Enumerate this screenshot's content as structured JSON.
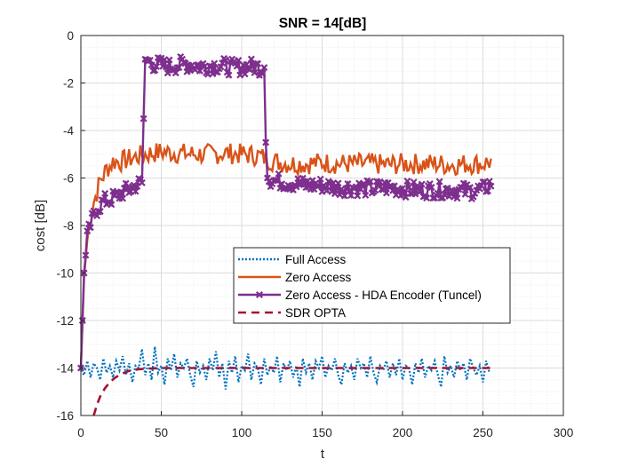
{
  "chart_data": {
    "type": "line",
    "title": "SNR = 14[dB]",
    "xlabel": "t",
    "ylabel": "cost [dB]",
    "xlim": [
      0,
      300
    ],
    "ylim": [
      -16,
      0
    ],
    "xticks": [
      0,
      50,
      100,
      150,
      200,
      250,
      300
    ],
    "yticks": [
      0,
      -2,
      -4,
      -6,
      -8,
      -10,
      -12,
      -14,
      -16
    ],
    "grid": "major and minor",
    "legend_position": "center-right",
    "series": [
      {
        "name": "Full Access",
        "style": "dotted",
        "color": "#0072BD",
        "x_range": [
          0,
          255
        ],
        "level": -14.0,
        "spread": [
          -15.2,
          -12.9
        ],
        "values": [
          -14.1,
          -14.3,
          -13.7,
          -14.4,
          -13.8,
          -14.0,
          -14.5,
          -13.6,
          -14.2,
          -13.9,
          -14.4,
          -13.7,
          -14.1,
          -13.5,
          -14.3,
          -13.8,
          -14.6,
          -13.9,
          -14.0,
          -13.2,
          -14.3,
          -13.8,
          -14.5,
          -13.1,
          -14.2,
          -13.9,
          -14.7,
          -13.6,
          -14.1,
          -13.4,
          -14.4,
          -13.8,
          -14.0,
          -13.6,
          -14.3,
          -14.8,
          -13.7,
          -14.2,
          -13.9,
          -14.5,
          -13.6,
          -14.1,
          -13.3,
          -14.4,
          -13.8,
          -14.9,
          -13.7,
          -14.2,
          -13.5,
          -14.6,
          -13.9,
          -14.1,
          -13.4,
          -14.5,
          -13.8,
          -14.0,
          -14.7,
          -13.6,
          -14.3,
          -13.9,
          -14.2,
          -13.5,
          -14.6,
          -13.8,
          -14.1,
          -13.7,
          -14.4,
          -13.9,
          -14.8,
          -13.6,
          -14.2,
          -13.8,
          -14.5,
          -13.7,
          -14.0,
          -13.5,
          -14.4,
          -13.9,
          -14.1,
          -13.6,
          -14.3,
          -14.7,
          -13.8,
          -14.2,
          -13.9,
          -14.5,
          -13.6,
          -14.0,
          -13.8,
          -14.4,
          -13.5,
          -14.2,
          -14.6,
          -13.9,
          -14.1,
          -13.7,
          -14.4,
          -13.8,
          -14.3,
          -13.6,
          -14.5,
          -13.9,
          -14.0,
          -14.7,
          -13.8,
          -14.2,
          -13.6,
          -14.4,
          -13.9,
          -14.1,
          -13.7,
          -14.3,
          -14.8,
          -13.5,
          -14.2,
          -13.9,
          -14.4,
          -13.7,
          -14.1,
          -13.8,
          -14.5,
          -13.6,
          -14.0,
          -14.3,
          -13.9,
          -14.6,
          -13.7,
          -14.2
        ],
        "x_step": 2
      },
      {
        "name": "Zero Access",
        "style": "solid",
        "color": "#D95319",
        "x": [
          0,
          2,
          4,
          6,
          8,
          10,
          12,
          14,
          16,
          18,
          20,
          25,
          30,
          35,
          40,
          50,
          60,
          70,
          80,
          90,
          100,
          110,
          120,
          130,
          140,
          150,
          160,
          170,
          180,
          190,
          200,
          210,
          220,
          230,
          240,
          250,
          255
        ],
        "values": [
          -14.0,
          -10.2,
          -8.6,
          -7.7,
          -7.0,
          -6.6,
          -6.1,
          -5.9,
          -5.6,
          -5.5,
          -5.3,
          -5.3,
          -5.2,
          -5.1,
          -5.0,
          -4.9,
          -4.95,
          -5.0,
          -5.0,
          -4.95,
          -5.0,
          -5.05,
          -5.3,
          -5.4,
          -5.4,
          -5.35,
          -5.4,
          -5.4,
          -5.4,
          -5.45,
          -5.4,
          -5.4,
          -5.4,
          -5.45,
          -5.4,
          -5.4,
          -5.3
        ],
        "noise": 0.45
      },
      {
        "name": "Zero Access - HDA Encoder (Tuncel)",
        "style": "solid-x-markers",
        "color": "#7E2F8E",
        "x": [
          0,
          2,
          4,
          6,
          8,
          10,
          14,
          18,
          22,
          26,
          30,
          34,
          38,
          39,
          40,
          45,
          55,
          65,
          75,
          85,
          95,
          105,
          114,
          115,
          116,
          120,
          130,
          140,
          150,
          160,
          170,
          180,
          190,
          200,
          210,
          220,
          230,
          240,
          250,
          255
        ],
        "values": [
          -14.0,
          -10.0,
          -8.5,
          -8.0,
          -7.6,
          -7.3,
          -7.0,
          -6.9,
          -6.8,
          -6.6,
          -6.5,
          -6.3,
          -6.2,
          -3.5,
          -1.0,
          -1.2,
          -1.3,
          -1.2,
          -1.3,
          -1.25,
          -1.35,
          -1.3,
          -1.35,
          -4.5,
          -6.0,
          -6.1,
          -6.2,
          -6.3,
          -6.3,
          -6.4,
          -6.4,
          -6.45,
          -6.4,
          -6.45,
          -6.5,
          -6.5,
          -6.5,
          -6.55,
          -6.5,
          -6.2
        ],
        "noise": 0.35
      },
      {
        "name": "SDR OPTA",
        "style": "dashed",
        "color": "#A2142F",
        "x": [
          8,
          10,
          12,
          15,
          18,
          21,
          25,
          30,
          35,
          40,
          50,
          60,
          80,
          100,
          150,
          200,
          255
        ],
        "values": [
          -16.0,
          -15.55,
          -15.2,
          -14.85,
          -14.6,
          -14.42,
          -14.25,
          -14.12,
          -14.06,
          -14.03,
          -14.0,
          -14.0,
          -14.0,
          -14.0,
          -14.0,
          -14.0,
          -14.0
        ]
      }
    ]
  }
}
